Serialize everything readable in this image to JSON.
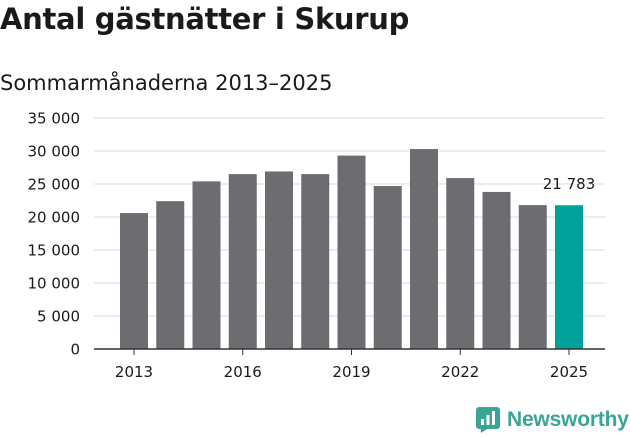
{
  "chart_data": {
    "type": "bar",
    "title": "Antal gästnätter i Skurup",
    "subtitle": "Sommarmånaderna 2013–2025",
    "categories": [
      2013,
      2014,
      2015,
      2016,
      2017,
      2018,
      2019,
      2020,
      2021,
      2022,
      2023,
      2024,
      2025
    ],
    "values": [
      20600,
      22400,
      25400,
      26500,
      26900,
      26500,
      29300,
      24700,
      30300,
      25900,
      23800,
      21800,
      21783
    ],
    "x_tick_labels": [
      "2013",
      "2016",
      "2019",
      "2022",
      "2025"
    ],
    "y_tick_labels": [
      "0",
      "5 000",
      "10 000",
      "15 000",
      "20 000",
      "25 000",
      "30 000",
      "35 000"
    ],
    "y_ticks": [
      0,
      5000,
      10000,
      15000,
      20000,
      25000,
      30000,
      35000
    ],
    "ylim": [
      0,
      35000
    ],
    "grid": true,
    "bar_color": "#6d6c70",
    "highlight_color": "#00a29a",
    "highlight_category": 2025,
    "data_labels": [
      {
        "category": 2025,
        "text": "21 783"
      }
    ]
  },
  "brand": {
    "name": "Newsworthy",
    "logo_icon": "newsworthy-logo-icon",
    "color": "#3aa597"
  }
}
